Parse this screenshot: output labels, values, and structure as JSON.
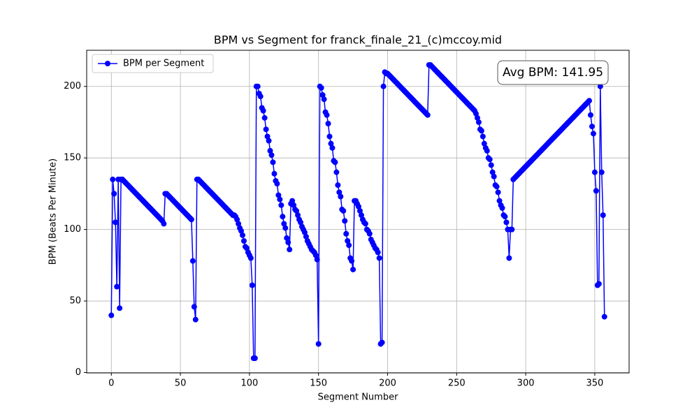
{
  "chart_data": {
    "type": "line",
    "title": "BPM vs Segment for franck_finale_21_(c)mccoy.mid",
    "x_label": "Segment Number",
    "y_label": "BPM (Beats Per Minute)",
    "annotation": "Avg BPM: 141.95",
    "legend_loc": "upper left",
    "grid": true,
    "xlim": [
      -17.85,
      374.85
    ],
    "ylim": [
      -0.25,
      225.25
    ],
    "xticks": [
      0,
      50,
      100,
      150,
      200,
      250,
      300,
      350
    ],
    "yticks": [
      0,
      50,
      100,
      150,
      200
    ],
    "x": [
      0,
      1,
      2,
      3,
      4,
      5,
      6,
      7,
      8,
      9,
      10,
      11,
      12,
      13,
      14,
      15,
      16,
      17,
      18,
      19,
      20,
      21,
      22,
      23,
      24,
      25,
      26,
      27,
      28,
      29,
      30,
      31,
      32,
      33,
      34,
      35,
      36,
      37,
      38,
      39,
      40,
      41,
      42,
      43,
      44,
      45,
      46,
      47,
      48,
      49,
      50,
      51,
      52,
      53,
      54,
      55,
      56,
      57,
      58,
      59,
      60,
      61,
      62,
      63,
      64,
      65,
      66,
      67,
      68,
      69,
      70,
      71,
      72,
      73,
      74,
      75,
      76,
      77,
      78,
      79,
      80,
      81,
      82,
      83,
      84,
      85,
      86,
      87,
      88,
      89,
      90,
      91,
      92,
      93,
      94,
      95,
      96,
      97,
      98,
      99,
      100,
      101,
      102,
      103,
      104,
      105,
      106,
      107,
      108,
      109,
      110,
      111,
      112,
      113,
      114,
      115,
      116,
      117,
      118,
      119,
      120,
      121,
      122,
      123,
      124,
      125,
      126,
      127,
      128,
      129,
      130,
      131,
      132,
      133,
      134,
      135,
      136,
      137,
      138,
      139,
      140,
      141,
      142,
      143,
      144,
      145,
      146,
      147,
      148,
      149,
      150,
      151,
      152,
      153,
      154,
      155,
      156,
      157,
      158,
      159,
      160,
      161,
      162,
      163,
      164,
      165,
      166,
      167,
      168,
      169,
      170,
      171,
      172,
      173,
      174,
      175,
      176,
      177,
      178,
      179,
      180,
      181,
      182,
      183,
      184,
      185,
      186,
      187,
      188,
      189,
      190,
      191,
      192,
      193,
      194,
      195,
      196,
      197,
      198,
      199,
      200,
      201,
      202,
      203,
      204,
      205,
      206,
      207,
      208,
      209,
      210,
      211,
      212,
      213,
      214,
      215,
      216,
      217,
      218,
      219,
      220,
      221,
      222,
      223,
      224,
      225,
      226,
      227,
      228,
      229,
      230,
      231,
      232,
      233,
      234,
      235,
      236,
      237,
      238,
      239,
      240,
      241,
      242,
      243,
      244,
      245,
      246,
      247,
      248,
      249,
      250,
      251,
      252,
      253,
      254,
      255,
      256,
      257,
      258,
      259,
      260,
      261,
      262,
      263,
      264,
      265,
      266,
      267,
      268,
      269,
      270,
      271,
      272,
      273,
      274,
      275,
      276,
      277,
      278,
      279,
      280,
      281,
      282,
      283,
      284,
      285,
      286,
      287,
      288,
      289,
      290,
      291,
      292,
      293,
      294,
      295,
      296,
      297,
      298,
      299,
      300,
      301,
      302,
      303,
      304,
      305,
      306,
      307,
      308,
      309,
      310,
      311,
      312,
      313,
      314,
      315,
      316,
      317,
      318,
      319,
      320,
      321,
      322,
      323,
      324,
      325,
      326,
      327,
      328,
      329,
      330,
      331,
      332,
      333,
      334,
      335,
      336,
      337,
      338,
      339,
      340,
      341,
      342,
      343,
      344,
      345,
      346,
      347,
      348,
      349,
      350,
      351,
      352,
      353,
      354,
      355,
      356,
      357
    ],
    "series": [
      {
        "name": "BPM per Segment",
        "color": "#0000ff",
        "values": [
          40,
          135,
          125,
          105,
          60,
          135,
          45,
          135,
          135,
          134,
          133,
          132,
          131,
          130,
          129,
          128,
          127,
          126,
          125,
          124,
          123,
          122,
          121,
          120,
          119,
          118,
          117,
          116,
          115,
          114,
          113,
          112,
          111,
          110,
          109,
          108,
          107,
          106,
          104,
          125,
          125,
          124,
          123,
          122,
          121,
          120,
          119,
          118,
          117,
          116,
          115,
          114,
          113,
          112,
          111,
          110,
          109,
          108,
          107,
          78,
          46,
          37,
          135,
          135,
          134,
          133,
          132,
          131,
          130,
          129,
          128,
          127,
          126,
          125,
          124,
          123,
          122,
          121,
          120,
          119,
          118,
          117,
          116,
          115,
          114,
          113,
          112,
          111,
          110,
          110,
          109,
          107,
          104,
          101,
          99,
          96,
          92,
          88,
          87,
          84,
          82,
          80,
          61,
          10,
          10,
          200,
          200,
          195,
          193,
          185,
          183,
          178,
          170,
          165,
          162,
          155,
          152,
          147,
          139,
          134,
          132,
          124,
          121,
          117,
          109,
          104,
          101,
          94,
          91,
          86,
          118,
          120,
          117,
          114,
          113,
          110,
          107,
          105,
          102,
          100,
          98,
          95,
          92,
          90,
          88,
          86,
          85,
          84,
          82,
          79,
          20,
          200,
          199,
          194,
          191,
          182,
          180,
          174,
          165,
          160,
          157,
          148,
          147,
          140,
          131,
          126,
          123,
          114,
          113,
          106,
          97,
          92,
          89,
          80,
          78,
          72,
          120,
          120,
          118,
          116,
          113,
          110,
          107,
          105,
          104,
          100,
          99,
          97,
          93,
          91,
          89,
          87,
          86,
          84,
          80,
          20,
          21,
          200,
          210,
          209,
          209,
          208,
          207,
          206,
          205,
          204,
          203,
          202,
          201,
          200,
          199,
          198,
          197,
          196,
          195,
          194,
          193,
          192,
          191,
          190,
          189,
          188,
          187,
          186,
          185,
          184,
          183,
          182,
          181,
          180,
          215,
          215,
          214,
          213,
          212,
          211,
          210,
          209,
          208,
          207,
          206,
          205,
          204,
          203,
          202,
          201,
          200,
          199,
          198,
          197,
          196,
          195,
          194,
          193,
          192,
          191,
          190,
          189,
          188,
          187,
          186,
          185,
          184,
          183,
          181,
          178,
          175,
          170,
          169,
          165,
          160,
          157,
          155,
          150,
          149,
          145,
          140,
          137,
          131,
          130,
          126,
          120,
          117,
          115,
          110,
          109,
          105,
          100,
          80,
          100,
          100,
          135,
          136,
          137,
          138,
          139,
          140,
          141,
          142,
          143,
          144,
          145,
          146,
          147,
          148,
          149,
          150,
          151,
          152,
          153,
          154,
          155,
          156,
          157,
          158,
          159,
          160,
          161,
          162,
          163,
          164,
          165,
          166,
          167,
          168,
          169,
          170,
          171,
          172,
          173,
          174,
          175,
          176,
          177,
          178,
          179,
          180,
          181,
          182,
          183,
          184,
          185,
          186,
          187,
          188,
          189,
          190,
          180,
          172,
          167,
          140,
          127,
          61,
          62,
          200,
          140,
          110,
          39
        ]
      }
    ]
  }
}
